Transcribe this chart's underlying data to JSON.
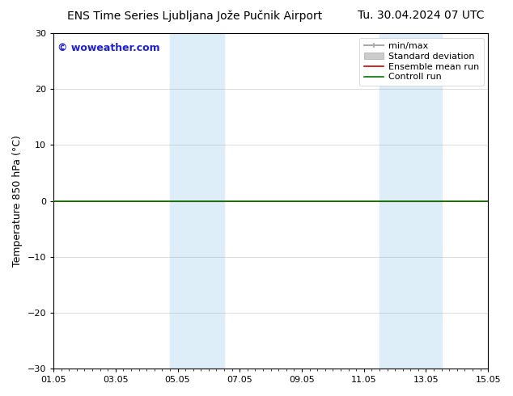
{
  "title_left": "ENS Time Series Ljubljana Jože Pučnik Airport",
  "title_right": "Tu. 30.04.2024 07 UTC",
  "ylabel": "Temperature 850 hPa (°C)",
  "ylim": [
    -30,
    30
  ],
  "yticks": [
    -30,
    -20,
    -10,
    0,
    10,
    20,
    30
  ],
  "xtick_labels": [
    "01.05",
    "03.05",
    "05.05",
    "07.05",
    "09.05",
    "11.05",
    "13.05",
    "15.05"
  ],
  "xtick_positions": [
    0,
    2,
    4,
    6,
    8,
    10,
    12,
    14
  ],
  "xlim": [
    0,
    14
  ],
  "shaded_regions": [
    {
      "xmin": 3.75,
      "xmax": 5.5
    },
    {
      "xmin": 10.5,
      "xmax": 12.5
    }
  ],
  "shaded_color": "#ddeef8",
  "watermark_text": "© woweather.com",
  "watermark_color": "#2222cc",
  "control_run_y": 0.0,
  "control_run_color": "#007700",
  "ensemble_mean_color": "#cc0000",
  "minmax_color": "#aaaaaa",
  "stddev_color": "#cccccc",
  "legend_labels": [
    "min/max",
    "Standard deviation",
    "Ensemble mean run",
    "Controll run"
  ],
  "bg_color": "#ffffff",
  "title_fontsize": 10,
  "tick_fontsize": 8,
  "label_fontsize": 9,
  "legend_fontsize": 8
}
